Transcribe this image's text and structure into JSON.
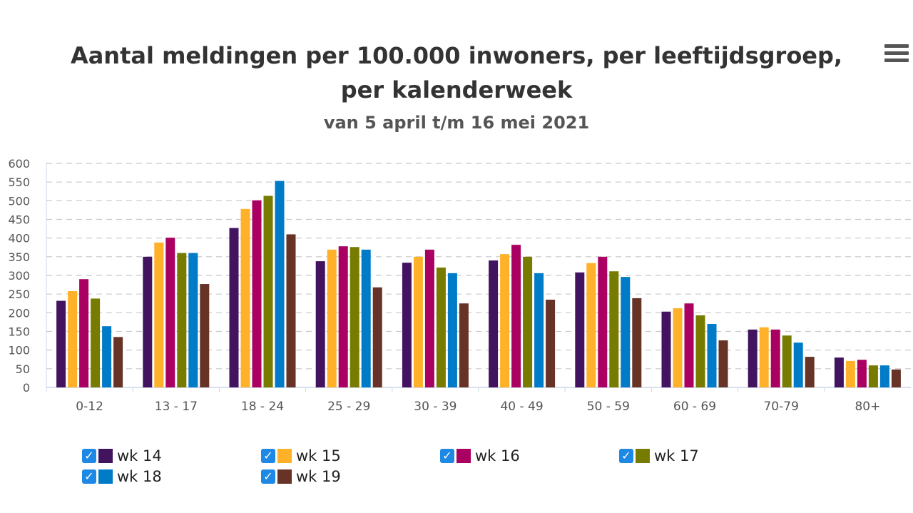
{
  "chart_data": {
    "type": "bar",
    "title": "Aantal meldingen per 100.000 inwoners, per leeftijdsgroep, per kalenderweek",
    "subtitle": "van 5 april t/m 16 mei 2021",
    "categories": [
      "0-12",
      "13 - 17",
      "18 - 24",
      "25 - 29",
      "30 - 39",
      "40 - 49",
      "50 - 59",
      "60 - 69",
      "70-79",
      "80+"
    ],
    "ylim": [
      0,
      600
    ],
    "yticks": [
      0,
      50,
      100,
      150,
      200,
      250,
      300,
      350,
      400,
      450,
      500,
      550,
      600
    ],
    "grid": true,
    "legend_position": "bottom",
    "series": [
      {
        "name": "wk 14",
        "color": "#42145f",
        "values": [
          232,
          350,
          427,
          338,
          334,
          340,
          308,
          203,
          155,
          80
        ]
      },
      {
        "name": "wk 15",
        "color": "#ffb12a",
        "values": [
          258,
          388,
          478,
          369,
          350,
          357,
          333,
          212,
          161,
          71
        ]
      },
      {
        "name": "wk 16",
        "color": "#a90061",
        "values": [
          290,
          401,
          501,
          378,
          369,
          382,
          350,
          225,
          155,
          74
        ]
      },
      {
        "name": "wk 17",
        "color": "#777c00",
        "values": [
          238,
          360,
          513,
          376,
          321,
          350,
          311,
          193,
          139,
          59
        ]
      },
      {
        "name": "wk 18",
        "color": "#007bc7",
        "values": [
          164,
          360,
          553,
          369,
          306,
          306,
          296,
          170,
          120,
          59
        ]
      },
      {
        "name": "wk 19",
        "color": "#673327",
        "values": [
          135,
          277,
          410,
          268,
          225,
          235,
          239,
          126,
          82,
          48
        ]
      }
    ]
  },
  "menu_icon": "hamburger-menu-icon",
  "checkbox_mark": "✓"
}
